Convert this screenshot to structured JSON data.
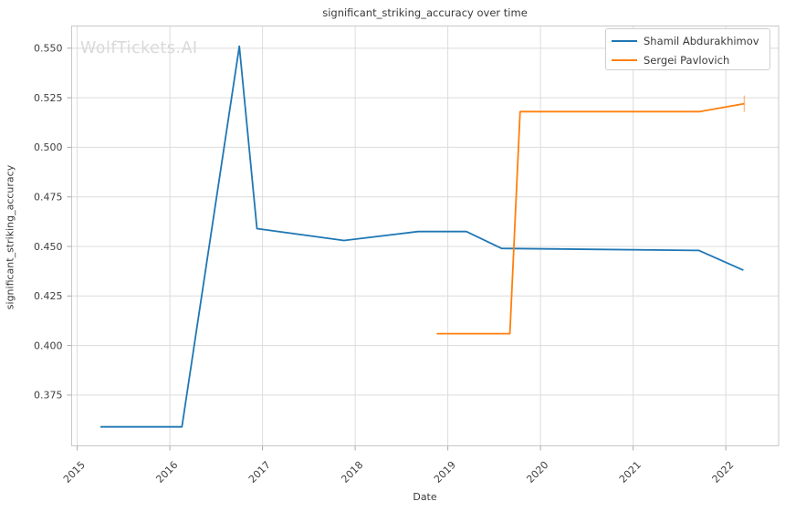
{
  "figure": {
    "background": "#ffffff",
    "watermark": "WolfTickets.AI"
  },
  "chart_data": {
    "type": "line",
    "title": "significant_striking_accuracy over time",
    "xlabel": "Date",
    "ylabel": "significant_striking_accuracy",
    "watermark": "WolfTickets.AI",
    "grid": true,
    "legend_position": "upper right",
    "xlim": [
      2014.94,
      2022.57
    ],
    "ylim": [
      0.3494,
      0.5612
    ],
    "x_ticks": [
      2015,
      2016,
      2017,
      2018,
      2019,
      2020,
      2021,
      2022
    ],
    "y_ticks": [
      "0.375",
      "0.400",
      "0.425",
      "0.450",
      "0.475",
      "0.500",
      "0.525",
      "0.550"
    ],
    "series": [
      {
        "name": "Shamil Abdurakhimov",
        "color": "#1f77b4",
        "points": [
          [
            2015.25,
            0.359
          ],
          [
            2016.13,
            0.359
          ],
          [
            2016.75,
            0.551
          ],
          [
            2016.94,
            0.459
          ],
          [
            2017.88,
            0.453
          ],
          [
            2018.68,
            0.4575
          ],
          [
            2019.2,
            0.4575
          ],
          [
            2019.58,
            0.449
          ],
          [
            2021.71,
            0.448
          ],
          [
            2022.19,
            0.438
          ]
        ],
        "end_tick": false
      },
      {
        "name": "Sergei Pavlovich",
        "color": "#ff7f0e",
        "points": [
          [
            2018.88,
            0.406
          ],
          [
            2019.67,
            0.406
          ],
          [
            2019.78,
            0.518
          ],
          [
            2021.72,
            0.518
          ],
          [
            2022.2,
            0.522
          ]
        ],
        "end_tick": true
      }
    ],
    "colors": {
      "grid": "#dcdcdc",
      "spine": "#c8c8c8",
      "tick_mark": "#aaaaaa",
      "tick_text": "#3f3f3f",
      "text": "#3a3a3a",
      "watermark": "#d9d9d9"
    }
  }
}
